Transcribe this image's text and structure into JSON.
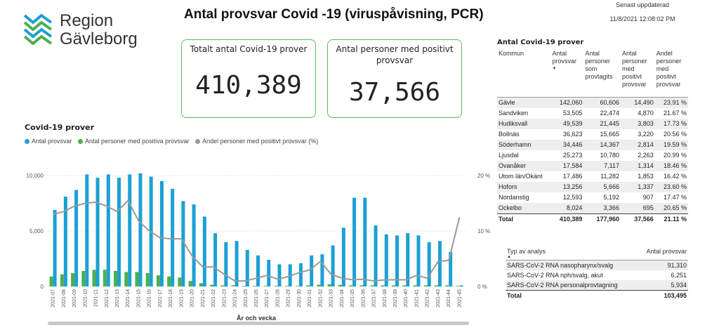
{
  "logo": {
    "line1": "Region",
    "line2": "Gävleborg"
  },
  "title": "Antal provsvar Covid -19 (viruspåvisning, PCR)",
  "updated": {
    "label": "Senast uppdaterad",
    "value": "11/8/2021 12:08:02 PM"
  },
  "kpi": {
    "total_label": "Totalt antal Covid-19 prover",
    "total_value": "410,389",
    "positive_label": "Antal personer med positivt provsvar",
    "positive_value": "37,566"
  },
  "chart_title": "Covid-19 prover",
  "colors": {
    "total": "#1aa1d4",
    "positive": "#4caf50",
    "share": "#999999",
    "brand_green": "#5cb85c"
  },
  "chart_data": {
    "type": "bar",
    "xlabel": "År och vecka",
    "ylabel": "",
    "categories": [
      "2021-07",
      "2021-08",
      "2021-09",
      "2021-10",
      "2021-11",
      "2021-12",
      "2021-13",
      "2021-14",
      "2021-15",
      "2021-16",
      "2021-17",
      "2021-18",
      "2021-19",
      "2021-20",
      "2021-21",
      "2021-22",
      "2021-23",
      "2021-24",
      "2021-25",
      "2021-26",
      "2021-27",
      "2021-28",
      "2021-29",
      "2021-30",
      "2021-31",
      "2021-32",
      "2021-33",
      "2021-34",
      "2021-35",
      "2021-36",
      "2021-37",
      "2021-38",
      "2021-39",
      "2021-40",
      "2021-41",
      "2021-42",
      "2021-43",
      "2021-44",
      "2021-45"
    ],
    "y_ticks": [
      "0",
      "5,000",
      "10,000"
    ],
    "ylim": [
      0,
      10000
    ],
    "y2_ticks": [
      "0 %",
      "10 %",
      "20 %"
    ],
    "y2lim": [
      0,
      20
    ],
    "legend": [
      {
        "name": "Antal provsvar",
        "color": "#1aa1d4"
      },
      {
        "name": "Antal personer med positiva provsvar",
        "color": "#4caf50"
      },
      {
        "name": "Andel personer med positivt provsvar  (%)",
        "color": "#999999"
      }
    ],
    "series": [
      {
        "name": "Antal provsvar",
        "values": [
          6900,
          8100,
          8700,
          10100,
          9800,
          10100,
          9800,
          10100,
          10200,
          9900,
          9500,
          8800,
          7700,
          7400,
          6300,
          4800,
          4000,
          4100,
          3300,
          2800,
          2400,
          2000,
          2000,
          2100,
          2800,
          2900,
          3700,
          5300,
          8000,
          8000,
          5500,
          4700,
          4600,
          4800,
          4600,
          4000,
          4100,
          3100,
          100
        ]
      },
      {
        "name": "Antal personer med positiva provsvar",
        "values": [
          900,
          1100,
          1200,
          1400,
          1500,
          1500,
          1400,
          1300,
          1300,
          1200,
          1000,
          900,
          800,
          500,
          300,
          150,
          100,
          100,
          50,
          50,
          50,
          50,
          50,
          50,
          100,
          150,
          200,
          150,
          100,
          100,
          100,
          100,
          100,
          100,
          100,
          100,
          100,
          100,
          50
        ]
      },
      {
        "name": "Andel personer med positivt provsvar  (%)",
        "values": [
          13.0,
          13.5,
          14.5,
          15.0,
          15.2,
          14.5,
          13.5,
          15.5,
          11.8,
          10.0,
          8.8,
          8.6,
          8.6,
          5.5,
          3.5,
          3.5,
          2.2,
          1.0,
          1.0,
          1.5,
          2.0,
          1.3,
          1.8,
          2.5,
          3.0,
          4.5,
          2.2,
          1.5,
          1.2,
          1.3,
          1.0,
          1.2,
          1.2,
          1.2,
          2.0,
          1.5,
          4.5,
          4.7,
          12.5
        ]
      }
    ]
  },
  "table1": {
    "title": "Antal Covid-19 prover",
    "headers": [
      "Kommun",
      "Antal provsvar",
      "Antal personer som provtagits",
      "Antal personer med positivt provsvar",
      "Andel personer med positivt provsvar"
    ],
    "rows": [
      [
        "Gävle",
        "142,060",
        "60,606",
        "14,490",
        "23.91 %"
      ],
      [
        "Sandviken",
        "53,505",
        "22,474",
        "4,870",
        "21.67 %"
      ],
      [
        "Hudiksvall",
        "49,539",
        "21,445",
        "3,803",
        "17.73 %"
      ],
      [
        "Bollnäs",
        "36,623",
        "15,665",
        "3,220",
        "20.56 %"
      ],
      [
        "Söderhamn",
        "34,446",
        "14,367",
        "2,814",
        "19.59 %"
      ],
      [
        "Ljusdal",
        "25,273",
        "10,780",
        "2,263",
        "20.99 %"
      ],
      [
        "Ovanåker",
        "17,584",
        "7,117",
        "1,314",
        "18.46 %"
      ],
      [
        "Utom län/Okänt",
        "17,486",
        "11,282",
        "1,853",
        "16.42 %"
      ],
      [
        "Hofors",
        "13,256",
        "5,666",
        "1,337",
        "23.60 %"
      ],
      [
        "Nordanstig",
        "12,593",
        "5,192",
        "907",
        "17.47 %"
      ],
      [
        "Ockelbo",
        "8,024",
        "3,366",
        "695",
        "20.65 %"
      ]
    ],
    "total": [
      "Total",
      "410,389",
      "177,960",
      "37,566",
      "21.11 %"
    ]
  },
  "table2": {
    "headers": [
      "Typ av analys",
      "Antal provsvar"
    ],
    "rows": [
      [
        "SARS-CoV-2 RNA nasopharynx/svalg",
        "91,310"
      ],
      [
        "SARS-CoV-2 RNA nph/svalg, akut",
        "6,251"
      ],
      [
        "SARS-CoV-2 RNA personalprovtagning",
        "5,934"
      ]
    ],
    "total": [
      "Total",
      "103,495"
    ]
  }
}
